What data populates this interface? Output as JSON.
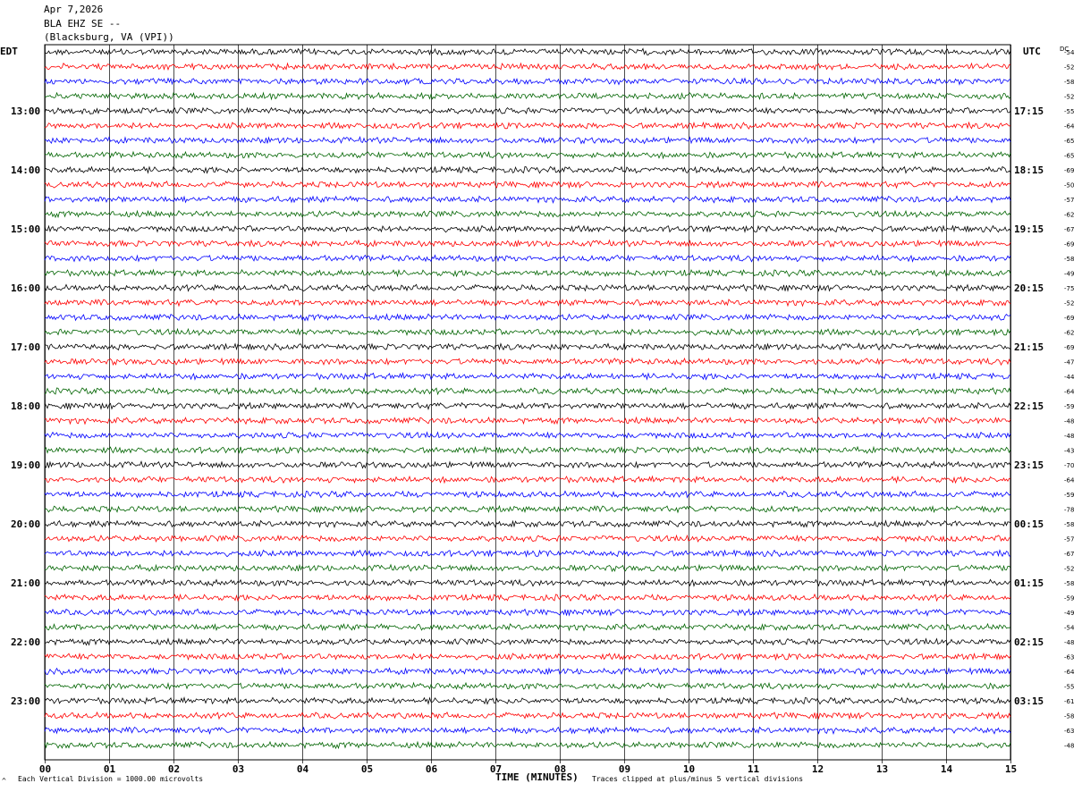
{
  "header": {
    "date": "Apr 7,2026",
    "channel": "BLA EHZ SE --",
    "location": "(Blacksburg, VA (VPI))"
  },
  "left_zone_label": "EDT",
  "right_zone_label": "UTC",
  "dc_label": "DC",
  "footer": {
    "corner_mark": "^",
    "scale_note": "Each Vertical Division = 1000.00 microvolts",
    "xlabel": "TIME (MINUTES)",
    "clip_note": "Traces clipped at plus/minus 5 vertical divisions"
  },
  "colors": {
    "trace_cycle": [
      "#000000",
      "#ff0000",
      "#0000ff",
      "#006400"
    ],
    "grid": "#000000"
  },
  "chart_data": {
    "type": "line",
    "description_type": "helicorder",
    "xlim": [
      0,
      15
    ],
    "x_ticks": [
      "00",
      "01",
      "02",
      "03",
      "04",
      "05",
      "06",
      "07",
      "08",
      "09",
      "10",
      "11",
      "12",
      "13",
      "14",
      "15"
    ],
    "left_hour_labels": [
      "13:00",
      "14:00",
      "15:00",
      "16:00",
      "17:00",
      "18:00",
      "19:00",
      "20:00",
      "21:00",
      "22:00",
      "23:00"
    ],
    "right_hour_labels": [
      "17:15",
      "18:15",
      "19:15",
      "20:15",
      "21:15",
      "22:15",
      "23:15",
      "00:15",
      "01:15",
      "02:15",
      "03:15"
    ],
    "dc_offsets": [
      -54,
      -52,
      -58,
      -52,
      -55,
      -64,
      -65,
      -65,
      -69,
      -50,
      -57,
      -62,
      -67,
      -69,
      -58,
      -49,
      -75,
      -52,
      -69,
      -62,
      -69,
      -47,
      -44,
      -64,
      -59,
      -48,
      -48,
      -43,
      -70,
      -64,
      -59,
      -78,
      -58,
      -57,
      -67,
      -52,
      -58,
      -59,
      -49,
      -54,
      -48,
      -63,
      -64,
      -55,
      -61,
      -58,
      -63,
      -48
    ]
  }
}
